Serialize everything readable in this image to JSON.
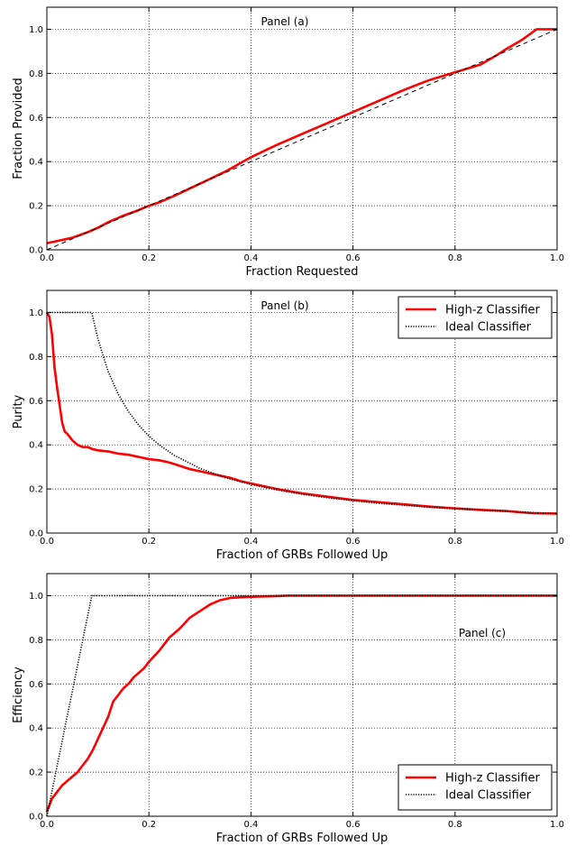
{
  "chart_data": [
    {
      "type": "line",
      "annotation": "Panel (a)",
      "xlabel": "Fraction Requested",
      "ylabel": "Fraction Provided",
      "xlim": [
        0.0,
        1.0
      ],
      "ylim": [
        0.0,
        1.1
      ],
      "xticks": [
        "0.0",
        "0.2",
        "0.4",
        "0.6",
        "0.8",
        "1.0"
      ],
      "yticks": [
        "0.0",
        "0.2",
        "0.4",
        "0.6",
        "0.8",
        "1.0"
      ],
      "grid": true,
      "legend": null,
      "series": [
        {
          "style": "solid",
          "color": "#ff0000",
          "x": [
            0.0,
            0.02,
            0.05,
            0.08,
            0.1,
            0.12,
            0.15,
            0.18,
            0.2,
            0.22,
            0.25,
            0.3,
            0.35,
            0.4,
            0.45,
            0.5,
            0.55,
            0.6,
            0.65,
            0.7,
            0.75,
            0.8,
            0.85,
            0.88,
            0.9,
            0.93,
            0.96,
            1.0
          ],
          "y": [
            0.03,
            0.04,
            0.055,
            0.08,
            0.1,
            0.125,
            0.155,
            0.18,
            0.2,
            0.215,
            0.245,
            0.3,
            0.355,
            0.42,
            0.475,
            0.525,
            0.575,
            0.625,
            0.675,
            0.725,
            0.77,
            0.805,
            0.84,
            0.88,
            0.91,
            0.95,
            1.0,
            1.0
          ]
        },
        {
          "style": "dashed",
          "color": "#000000",
          "x": [
            0.0,
            1.0
          ],
          "y": [
            0.0,
            1.0
          ]
        }
      ]
    },
    {
      "type": "line",
      "annotation": "Panel (b)",
      "xlabel": "Fraction of GRBs Followed Up",
      "ylabel": "Purity",
      "xlim": [
        0.0,
        1.0
      ],
      "ylim": [
        0.0,
        1.1
      ],
      "xticks": [
        "0.0",
        "0.2",
        "0.4",
        "0.6",
        "0.8",
        "1.0"
      ],
      "yticks": [
        "0.0",
        "0.2",
        "0.4",
        "0.6",
        "0.8",
        "1.0"
      ],
      "grid": true,
      "legend": "top-right",
      "series": [
        {
          "name": "High-z Classifier",
          "style": "solid",
          "color": "#ff0000",
          "x": [
            0.0,
            0.005,
            0.01,
            0.015,
            0.02,
            0.025,
            0.03,
            0.035,
            0.04,
            0.05,
            0.06,
            0.07,
            0.08,
            0.09,
            0.1,
            0.12,
            0.14,
            0.16,
            0.18,
            0.2,
            0.22,
            0.24,
            0.26,
            0.28,
            0.3,
            0.32,
            0.34,
            0.36,
            0.38,
            0.4,
            0.45,
            0.5,
            0.55,
            0.6,
            0.65,
            0.7,
            0.75,
            0.8,
            0.85,
            0.9,
            0.95,
            1.0
          ],
          "y": [
            1.0,
            0.98,
            0.9,
            0.75,
            0.66,
            0.58,
            0.5,
            0.46,
            0.45,
            0.42,
            0.4,
            0.39,
            0.39,
            0.38,
            0.375,
            0.37,
            0.36,
            0.355,
            0.345,
            0.335,
            0.33,
            0.32,
            0.305,
            0.29,
            0.28,
            0.27,
            0.26,
            0.25,
            0.235,
            0.225,
            0.2,
            0.18,
            0.165,
            0.15,
            0.14,
            0.13,
            0.12,
            0.112,
            0.105,
            0.1,
            0.09,
            0.088
          ]
        },
        {
          "name": "Ideal Classifier",
          "style": "dotted",
          "color": "#000000",
          "x": [
            0.0,
            0.088,
            0.1,
            0.12,
            0.14,
            0.16,
            0.18,
            0.2,
            0.22,
            0.25,
            0.3,
            0.35,
            0.4,
            0.45,
            0.5,
            0.55,
            0.6,
            0.65,
            0.7,
            0.75,
            0.8,
            0.85,
            0.9,
            0.95,
            1.0
          ],
          "y": [
            1.0,
            1.0,
            0.88,
            0.733,
            0.629,
            0.55,
            0.489,
            0.44,
            0.4,
            0.352,
            0.293,
            0.251,
            0.22,
            0.196,
            0.176,
            0.16,
            0.147,
            0.135,
            0.126,
            0.117,
            0.11,
            0.104,
            0.098,
            0.093,
            0.088
          ]
        }
      ]
    },
    {
      "type": "line",
      "annotation": "Panel (c)",
      "xlabel": "Fraction of GRBs Followed Up",
      "ylabel": "Efficiency",
      "xlim": [
        0.0,
        1.0
      ],
      "ylim": [
        0.0,
        1.1
      ],
      "xticks": [
        "0.0",
        "0.2",
        "0.4",
        "0.6",
        "0.8",
        "1.0"
      ],
      "yticks": [
        "0.0",
        "0.2",
        "0.4",
        "0.6",
        "0.8",
        "1.0"
      ],
      "grid": true,
      "legend": "bottom-right",
      "series": [
        {
          "name": "High-z Classifier",
          "style": "solid",
          "color": "#ff0000",
          "x": [
            0.0,
            0.005,
            0.01,
            0.02,
            0.03,
            0.04,
            0.05,
            0.06,
            0.07,
            0.08,
            0.09,
            0.1,
            0.11,
            0.12,
            0.13,
            0.14,
            0.15,
            0.16,
            0.17,
            0.18,
            0.19,
            0.2,
            0.22,
            0.24,
            0.26,
            0.28,
            0.3,
            0.32,
            0.34,
            0.36,
            0.38,
            0.4,
            0.45,
            0.47,
            0.5,
            0.6,
            0.7,
            0.8,
            0.9,
            1.0
          ],
          "y": [
            0.02,
            0.05,
            0.08,
            0.11,
            0.14,
            0.16,
            0.18,
            0.2,
            0.23,
            0.26,
            0.3,
            0.35,
            0.4,
            0.45,
            0.52,
            0.55,
            0.58,
            0.6,
            0.63,
            0.65,
            0.67,
            0.7,
            0.75,
            0.81,
            0.85,
            0.9,
            0.93,
            0.96,
            0.98,
            0.99,
            0.993,
            0.995,
            0.998,
            1.0,
            1.0,
            1.0,
            1.0,
            1.0,
            1.0,
            1.0
          ]
        },
        {
          "name": "Ideal Classifier",
          "style": "dotted",
          "color": "#000000",
          "x": [
            0.0,
            0.088,
            1.0
          ],
          "y": [
            0.0,
            1.0,
            1.0
          ]
        }
      ]
    }
  ]
}
